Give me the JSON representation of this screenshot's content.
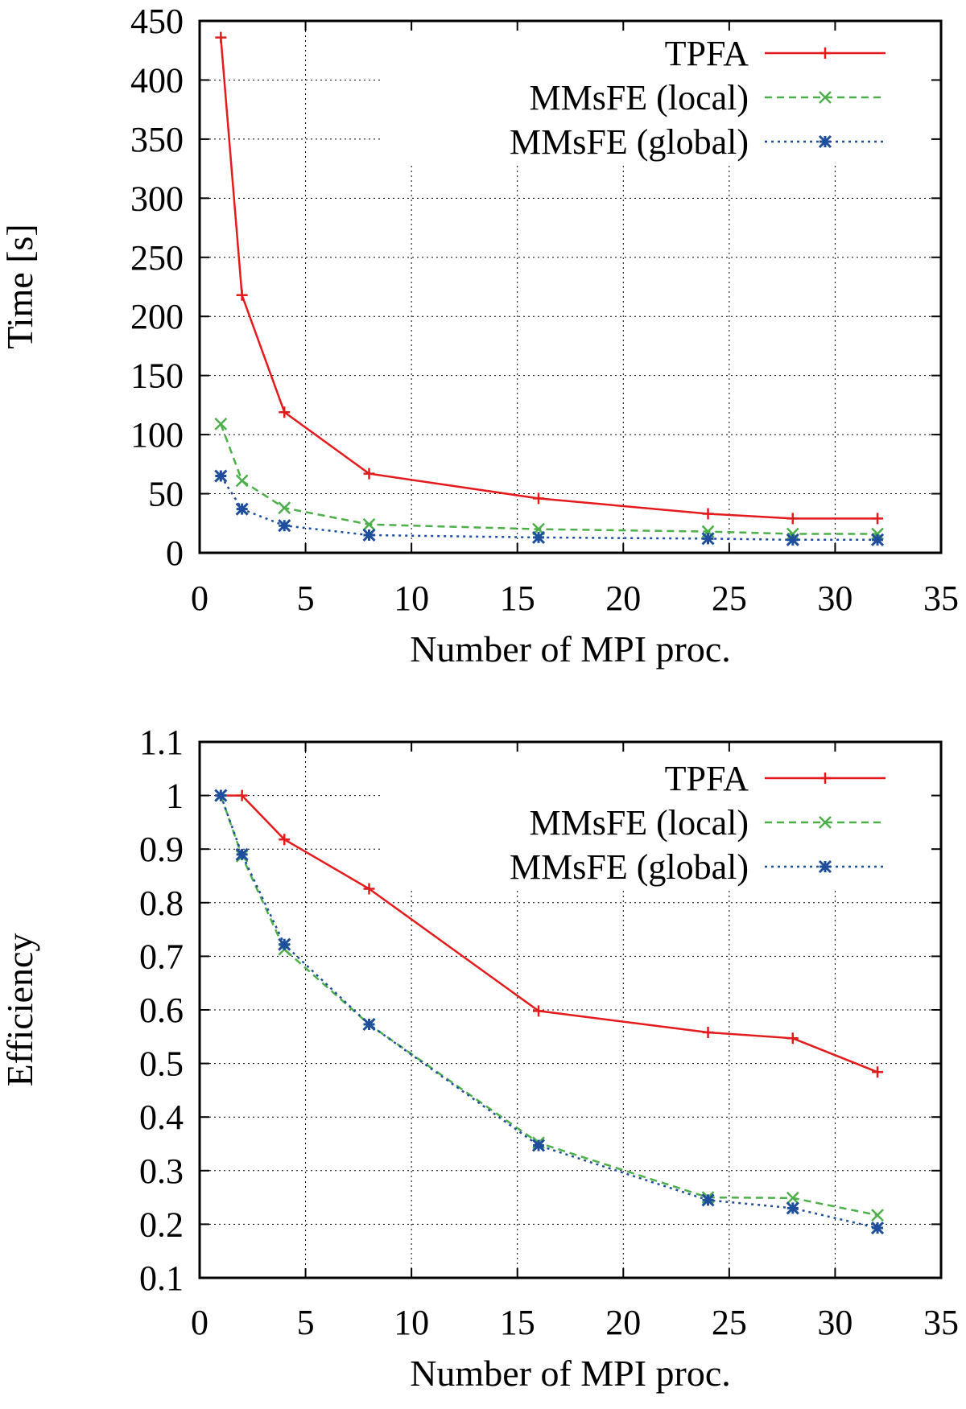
{
  "chart_data": [
    {
      "type": "line",
      "xlabel": "Number of MPI proc.",
      "ylabel": "Time [s]",
      "xlim": [
        0,
        35
      ],
      "ylim": [
        0,
        450
      ],
      "xticks": [
        0,
        5,
        10,
        15,
        20,
        25,
        30,
        35
      ],
      "yticks": [
        0,
        50,
        100,
        150,
        200,
        250,
        300,
        350,
        400,
        450
      ],
      "grid": true,
      "legend_position": "top-right",
      "x": [
        1,
        2,
        4,
        8,
        16,
        24,
        28,
        32
      ],
      "series": [
        {
          "name": "TPFA",
          "values": [
            436,
            218,
            119,
            67,
            46,
            33,
            29,
            29
          ],
          "color": "#e41a1c",
          "dash": "solid",
          "marker": "plus"
        },
        {
          "name": "MMsFE (local)",
          "values": [
            109,
            61,
            38,
            24,
            20,
            18,
            16,
            16
          ],
          "color": "#4daf4a",
          "dash": "dashed",
          "marker": "cross"
        },
        {
          "name": "MMsFE (global)",
          "values": [
            65,
            37,
            23,
            15,
            13,
            12,
            11,
            11
          ],
          "color": "#1f4e9c",
          "dash": "dotted",
          "marker": "star"
        }
      ]
    },
    {
      "type": "line",
      "xlabel": "Number of MPI proc.",
      "ylabel": "Efficiency",
      "xlim": [
        0,
        35
      ],
      "ylim": [
        0.1,
        1.1
      ],
      "xticks": [
        0,
        5,
        10,
        15,
        20,
        25,
        30,
        35
      ],
      "yticks": [
        0.1,
        0.2,
        0.3,
        0.4,
        0.5,
        0.6,
        0.7,
        0.8,
        0.9,
        1,
        1.1
      ],
      "grid": true,
      "legend_position": "top-right",
      "x": [
        1,
        2,
        4,
        8,
        16,
        24,
        28,
        32
      ],
      "series": [
        {
          "name": "TPFA",
          "values": [
            1.0,
            1.0,
            0.918,
            0.826,
            0.598,
            0.558,
            0.547,
            0.484
          ],
          "color": "#e41a1c",
          "dash": "solid",
          "marker": "plus"
        },
        {
          "name": "MMsFE (local)",
          "values": [
            1.0,
            0.887,
            0.713,
            0.573,
            0.352,
            0.25,
            0.249,
            0.217
          ],
          "color": "#4daf4a",
          "dash": "dashed",
          "marker": "cross"
        },
        {
          "name": "MMsFE (global)",
          "values": [
            1.0,
            0.89,
            0.722,
            0.573,
            0.347,
            0.245,
            0.23,
            0.193
          ],
          "color": "#1f4e9c",
          "dash": "dotted",
          "marker": "star"
        }
      ]
    }
  ]
}
